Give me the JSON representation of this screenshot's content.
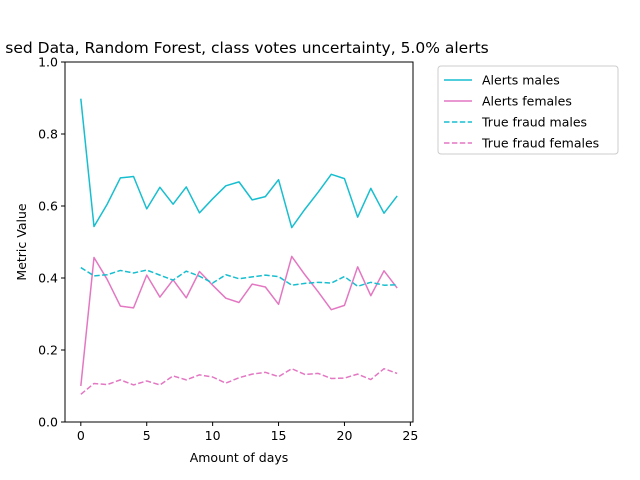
{
  "chart_data": {
    "type": "line",
    "title": "sed Data, Random Forest, class votes uncertainty, 5.0% alerts",
    "xlabel": "Amount of days",
    "ylabel": "Metric Value",
    "xlim": [
      -1.2,
      25.2
    ],
    "ylim": [
      0.0,
      1.0
    ],
    "xticks": [
      "0",
      "5",
      "10",
      "15",
      "20",
      "25"
    ],
    "yticks": [
      "0.0",
      "0.2",
      "0.4",
      "0.6",
      "0.8",
      "1.0"
    ],
    "legend_position": "outside-right-top",
    "grid": false,
    "x": [
      0,
      1,
      2,
      3,
      4,
      5,
      6,
      7,
      8,
      9,
      10,
      11,
      12,
      13,
      14,
      15,
      16,
      17,
      18,
      19,
      20,
      21,
      22,
      23,
      24
    ],
    "series": [
      {
        "name": "Alerts males",
        "color": "#17becf",
        "style": "solid",
        "values": [
          0.898,
          0.543,
          0.605,
          0.678,
          0.682,
          0.592,
          0.652,
          0.605,
          0.653,
          0.581,
          0.62,
          0.656,
          0.667,
          0.617,
          0.626,
          0.673,
          0.54,
          0.591,
          0.638,
          0.688,
          0.676,
          0.569,
          0.649,
          0.58,
          0.628
        ]
      },
      {
        "name": "Alerts females",
        "color": "#e377c2",
        "style": "solid",
        "values": [
          0.1,
          0.457,
          0.396,
          0.322,
          0.317,
          0.408,
          0.347,
          0.395,
          0.345,
          0.418,
          0.38,
          0.344,
          0.332,
          0.383,
          0.375,
          0.327,
          0.46,
          0.409,
          0.362,
          0.312,
          0.324,
          0.431,
          0.351,
          0.42,
          0.372
        ]
      },
      {
        "name": "True fraud males",
        "color": "#17becf",
        "style": "dashed",
        "values": [
          0.429,
          0.406,
          0.409,
          0.421,
          0.414,
          0.422,
          0.408,
          0.394,
          0.419,
          0.405,
          0.386,
          0.409,
          0.398,
          0.403,
          0.408,
          0.404,
          0.38,
          0.385,
          0.388,
          0.386,
          0.404,
          0.377,
          0.388,
          0.38,
          0.381
        ]
      },
      {
        "name": "True fraud females",
        "color": "#e377c2",
        "style": "dashed",
        "values": [
          0.077,
          0.107,
          0.104,
          0.117,
          0.103,
          0.114,
          0.103,
          0.128,
          0.117,
          0.131,
          0.125,
          0.108,
          0.123,
          0.133,
          0.138,
          0.126,
          0.148,
          0.132,
          0.135,
          0.121,
          0.122,
          0.133,
          0.118,
          0.148,
          0.135
        ]
      }
    ]
  }
}
